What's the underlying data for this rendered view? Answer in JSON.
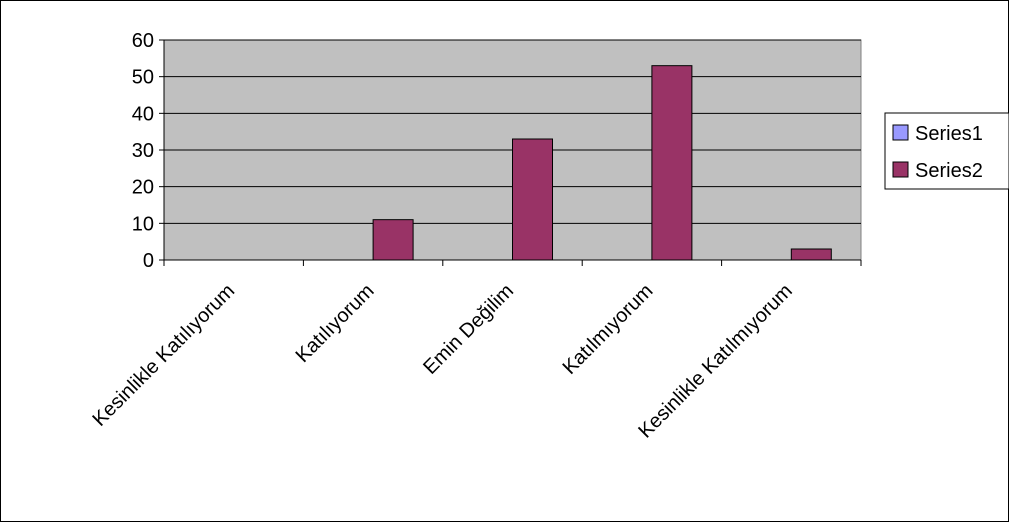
{
  "chart_data": {
    "type": "bar",
    "categories": [
      "Kesinlikle Katılıyorum",
      "Katılıyorum",
      "Emin Değilim",
      "Katılmıyorum",
      "Kesinlikle Katılmıyorum"
    ],
    "series": [
      {
        "name": "Series1",
        "values": [
          0,
          0,
          0,
          0,
          0
        ],
        "color": "#9999ff"
      },
      {
        "name": "Series2",
        "values": [
          0,
          11,
          33,
          53,
          3
        ],
        "color": "#993366"
      }
    ],
    "yticks": [
      "0",
      "10",
      "20",
      "30",
      "40",
      "50",
      "60"
    ],
    "ylim": [
      0,
      60
    ],
    "grid": true,
    "plot_background": "#c0c0c0",
    "legend_position": "right"
  }
}
